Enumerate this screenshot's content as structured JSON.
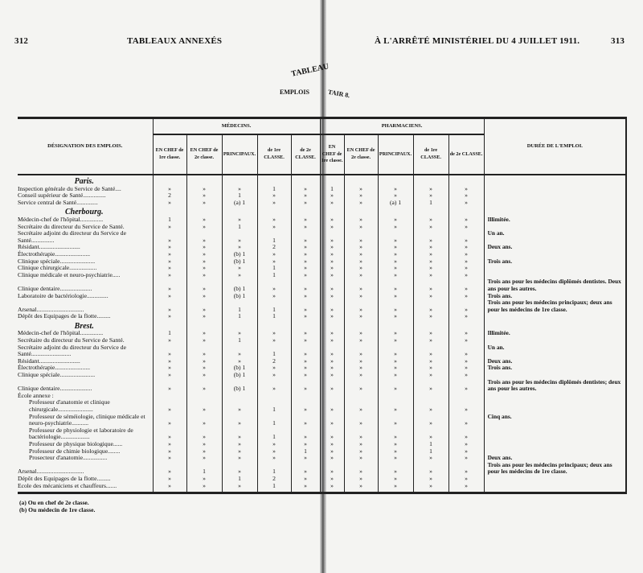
{
  "header": {
    "left_page_number": "312",
    "left_title": "TABLEAUX ANNEXÉS",
    "right_title": "À L'ARRÊTÉ MINISTÉRIEL DU 4 JUILLET 1911.",
    "right_page_number": "313"
  },
  "table_title": {
    "line1": "TABLEAU",
    "line2_left": "EMPLOIS",
    "line2_right": "TAIR 8."
  },
  "columns": {
    "designation": "DÉSIGNATION DES EMPLOIS.",
    "medecins": "MÉDECINS.",
    "pharmaciens": "PHARMACIENS.",
    "duree": "DURÉE DE L'EMPLOI.",
    "sub": [
      "EN CHEF de 1re classe.",
      "EN CHEF de 2e classe.",
      "PRINCIPAUX.",
      "de 1re CLASSE.",
      "de 2e CLASSE.",
      "EN CHEF de 1re classe.",
      "EN CHEF de 2e classe.",
      "PRINCIPAUX.",
      "de 1re CLASSE.",
      "de 2e CLASSE."
    ]
  },
  "rows": [
    {
      "city": "Paris."
    },
    {
      "label": "Inspection générale du Service de Santé....",
      "values": [
        "»",
        "»",
        "»",
        "1",
        "»",
        "1",
        "»",
        "»",
        "»",
        "»"
      ],
      "duree": ""
    },
    {
      "label": "Conseil supérieur de Santé...............",
      "values": [
        "2",
        "»",
        "1",
        "»",
        "»",
        "»",
        "»",
        "»",
        "»",
        "»"
      ],
      "duree": ""
    },
    {
      "label": "Service central de Santé..............",
      "values": [
        "»",
        "»",
        "(a) 1",
        "»",
        "»",
        "»",
        "»",
        "(a) 1",
        "1",
        "»"
      ],
      "duree": ""
    },
    {
      "city": "Cherbourg."
    },
    {
      "label": "Médecin-chef de l'hôpital...............",
      "values": [
        "1",
        "»",
        "»",
        "»",
        "»",
        "»",
        "»",
        "»",
        "»",
        "»"
      ],
      "duree": "Illimitée."
    },
    {
      "label": "Secrétaire du directeur du Service de Santé.",
      "values": [
        "»",
        "»",
        "1",
        "»",
        "»",
        "»",
        "»",
        "»",
        "»",
        "»"
      ],
      "duree": ""
    },
    {
      "label": "Secrétaire adjoint du directeur du Service de Santé...............",
      "values": [
        "»",
        "»",
        "»",
        "1",
        "»",
        "»",
        "»",
        "»",
        "»",
        "»"
      ],
      "duree": "Un an."
    },
    {
      "label": "Résidant...........................",
      "values": [
        "»",
        "»",
        "»",
        "2",
        "»",
        "»",
        "»",
        "»",
        "»",
        "»"
      ],
      "duree": "Deux ans."
    },
    {
      "label": "Électrothérapie.......................",
      "values": [
        "»",
        "»",
        "(b) 1",
        "»",
        "»",
        "»",
        "»",
        "»",
        "»",
        "»"
      ],
      "duree": ""
    },
    {
      "label": "Clinique spéciale.......................",
      "values": [
        "»",
        "»",
        "(b) 1",
        "»",
        "»",
        "»",
        "»",
        "»",
        "»",
        "»"
      ],
      "duree": "Trois ans."
    },
    {
      "label": "Clinique chirurgicale..................",
      "values": [
        "»",
        "»",
        "»",
        "1",
        "»",
        "»",
        "»",
        "»",
        "»",
        "»"
      ],
      "duree": ""
    },
    {
      "label": "Clinique médicale et neuro-psychiatrie.....",
      "values": [
        "»",
        "»",
        "»",
        "1",
        "»",
        "»",
        "»",
        "»",
        "»",
        "»"
      ],
      "duree": ""
    },
    {
      "label": "Clinique dentaire.....................",
      "values": [
        "»",
        "»",
        "(b) 1",
        "»",
        "»",
        "»",
        "»",
        "»",
        "»",
        "»"
      ],
      "duree": "Trois ans pour les médecins diplômés dentistes. Deux ans pour les autres."
    },
    {
      "label": "Laboratoire de bactériologie..............",
      "values": [
        "»",
        "»",
        "(b) 1",
        "»",
        "»",
        "»",
        "»",
        "»",
        "»",
        "»"
      ],
      "duree": "Trois ans."
    },
    {
      "label": "Arsenal...............................",
      "values": [
        "»",
        "»",
        "1",
        "1",
        "»",
        "»",
        "»",
        "»",
        "»",
        "»"
      ],
      "duree": "Trois ans pour les médecins principaux; deux ans pour les médecins de 1re classe."
    },
    {
      "label": "Dépôt des Equipages de la flotte.........",
      "values": [
        "»",
        "»",
        "1",
        "1",
        "»",
        "»",
        "»",
        "»",
        "»",
        "»"
      ],
      "duree": ""
    },
    {
      "city": "Brest."
    },
    {
      "label": "Médecin-chef de l'hôpital...............",
      "values": [
        "1",
        "»",
        "»",
        "»",
        "»",
        "»",
        "»",
        "»",
        "»",
        "»"
      ],
      "duree": "Illimitée."
    },
    {
      "label": "Secrétaire du directeur du Service de Santé.",
      "values": [
        "»",
        "»",
        "1",
        "»",
        "»",
        "»",
        "»",
        "»",
        "»",
        "»"
      ],
      "duree": ""
    },
    {
      "label": "Secrétaire adjoint du directeur du Service de Santé..........................",
      "values": [
        "»",
        "»",
        "»",
        "1",
        "»",
        "»",
        "»",
        "»",
        "»",
        "»"
      ],
      "duree": "Un an."
    },
    {
      "label": "Résidant...........................",
      "values": [
        "»",
        "»",
        "»",
        "2",
        "»",
        "»",
        "»",
        "»",
        "»",
        "»"
      ],
      "duree": "Deux ans."
    },
    {
      "label": "Électrothérapie.......................",
      "values": [
        "»",
        "»",
        "(b) 1",
        "»",
        "»",
        "»",
        "»",
        "»",
        "»",
        "»"
      ],
      "duree": "Trois ans."
    },
    {
      "label": "Clinique spéciale.......................",
      "values": [
        "»",
        "»",
        "(b) 1",
        "»",
        "»",
        "»",
        "»",
        "»",
        "»",
        "»"
      ],
      "duree": ""
    },
    {
      "label": "Clinique dentaire.....................",
      "values": [
        "»",
        "»",
        "(b) 1",
        "»",
        "»",
        "»",
        "»",
        "»",
        "»",
        "»"
      ],
      "duree": "Trois ans pour les médecins diplômés dentistes; deux ans pour les autres."
    },
    {
      "label": "École annexe :",
      "values": [
        "",
        "",
        "",
        "",
        "",
        "",
        "",
        "",
        "",
        ""
      ],
      "duree": ""
    },
    {
      "label": "Professeur d'anatomie et clinique chirurgicale.......................",
      "indent": true,
      "values": [
        "»",
        "»",
        "»",
        "1",
        "»",
        "»",
        "»",
        "»",
        "»",
        "»"
      ],
      "duree": ""
    },
    {
      "label": "Professeur de séméiologie, clinique médicale et neuro-psychiatrie...........",
      "indent": true,
      "values": [
        "»",
        "»",
        "»",
        "1",
        "»",
        "»",
        "»",
        "»",
        "»",
        "»"
      ],
      "duree": "Cinq ans."
    },
    {
      "label": "Professeur de physiologie et laboratoire de bactériologie...................",
      "indent": true,
      "values": [
        "»",
        "»",
        "»",
        "1",
        "»",
        "»",
        "»",
        "»",
        "»",
        "»"
      ],
      "duree": ""
    },
    {
      "label": "Professeur de physique biologique......",
      "indent": true,
      "values": [
        "»",
        "»",
        "»",
        "»",
        "»",
        "»",
        "»",
        "»",
        "1",
        "»"
      ],
      "duree": ""
    },
    {
      "label": "Professeur de chimie biologique........",
      "indent": true,
      "values": [
        "»",
        "»",
        "»",
        "»",
        "1",
        "»",
        "»",
        "»",
        "1",
        "»"
      ],
      "duree": ""
    },
    {
      "label": "Prosecteur d'anatomie................",
      "indent": true,
      "values": [
        "»",
        "»",
        "»",
        "»",
        "»",
        "»",
        "»",
        "»",
        "»",
        "»"
      ],
      "duree": "Deux ans."
    },
    {
      "label": "Arsenal...............................",
      "values": [
        "»",
        "1",
        "»",
        "1",
        "»",
        "»",
        "»",
        "»",
        "»",
        "»"
      ],
      "duree": "Trois ans pour les médecins principaux; deux ans pour les médecins de 1re classe."
    },
    {
      "label": "Dépôt des Equipages de la flotte.........",
      "values": [
        "»",
        "»",
        "1",
        "2",
        "»",
        "»",
        "»",
        "»",
        "»",
        "»"
      ],
      "duree": ""
    },
    {
      "label": "Ecole des mécaniciens et chauffeurs.......",
      "values": [
        "»",
        "»",
        "»",
        "1",
        "»",
        "»",
        "»",
        "»",
        "»",
        "»"
      ],
      "duree": ""
    }
  ],
  "footnotes": [
    "(a) Ou en chef de 2e classe.",
    "(b) Ou médecin de 1re classe."
  ]
}
